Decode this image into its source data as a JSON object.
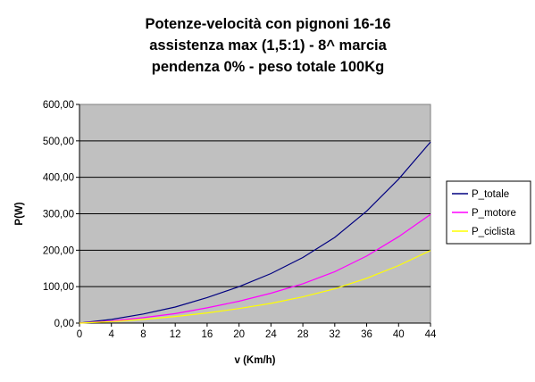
{
  "chart_data": {
    "type": "line",
    "title_lines": [
      "Potenze-velocità con pignoni 16-16",
      "assistenza max (1,5:1) - 8^ marcia",
      "pendenza 0% - peso totale 100Kg"
    ],
    "xlabel": "v (Km/h)",
    "ylabel": "P(W)",
    "xlim": [
      0,
      44
    ],
    "ylim": [
      0,
      600
    ],
    "x_ticks": [
      "0",
      "4",
      "8",
      "12",
      "16",
      "20",
      "24",
      "28",
      "32",
      "36",
      "40",
      "44"
    ],
    "y_ticks": [
      "0,00",
      "100,00",
      "200,00",
      "300,00",
      "400,00",
      "500,00",
      "600,00"
    ],
    "grid": "horizontal",
    "plot_background": "#c0c0c0",
    "legend_position": "right",
    "x": [
      0,
      4,
      8,
      12,
      16,
      20,
      24,
      28,
      32,
      36,
      40,
      44
    ],
    "series": [
      {
        "name": "P_totale",
        "color": "#000080",
        "values": [
          0,
          10,
          25,
          44,
          70,
          100,
          136,
          180,
          235,
          307,
          395,
          497
        ]
      },
      {
        "name": "P_motore",
        "color": "#ff00ff",
        "values": [
          0,
          6,
          15,
          26,
          42,
          60,
          82,
          108,
          141,
          184,
          237,
          298
        ]
      },
      {
        "name": "P_ciclista",
        "color": "#ffff00",
        "values": [
          0,
          4,
          10,
          18,
          28,
          40,
          54,
          72,
          94,
          123,
          158,
          199
        ]
      }
    ]
  }
}
